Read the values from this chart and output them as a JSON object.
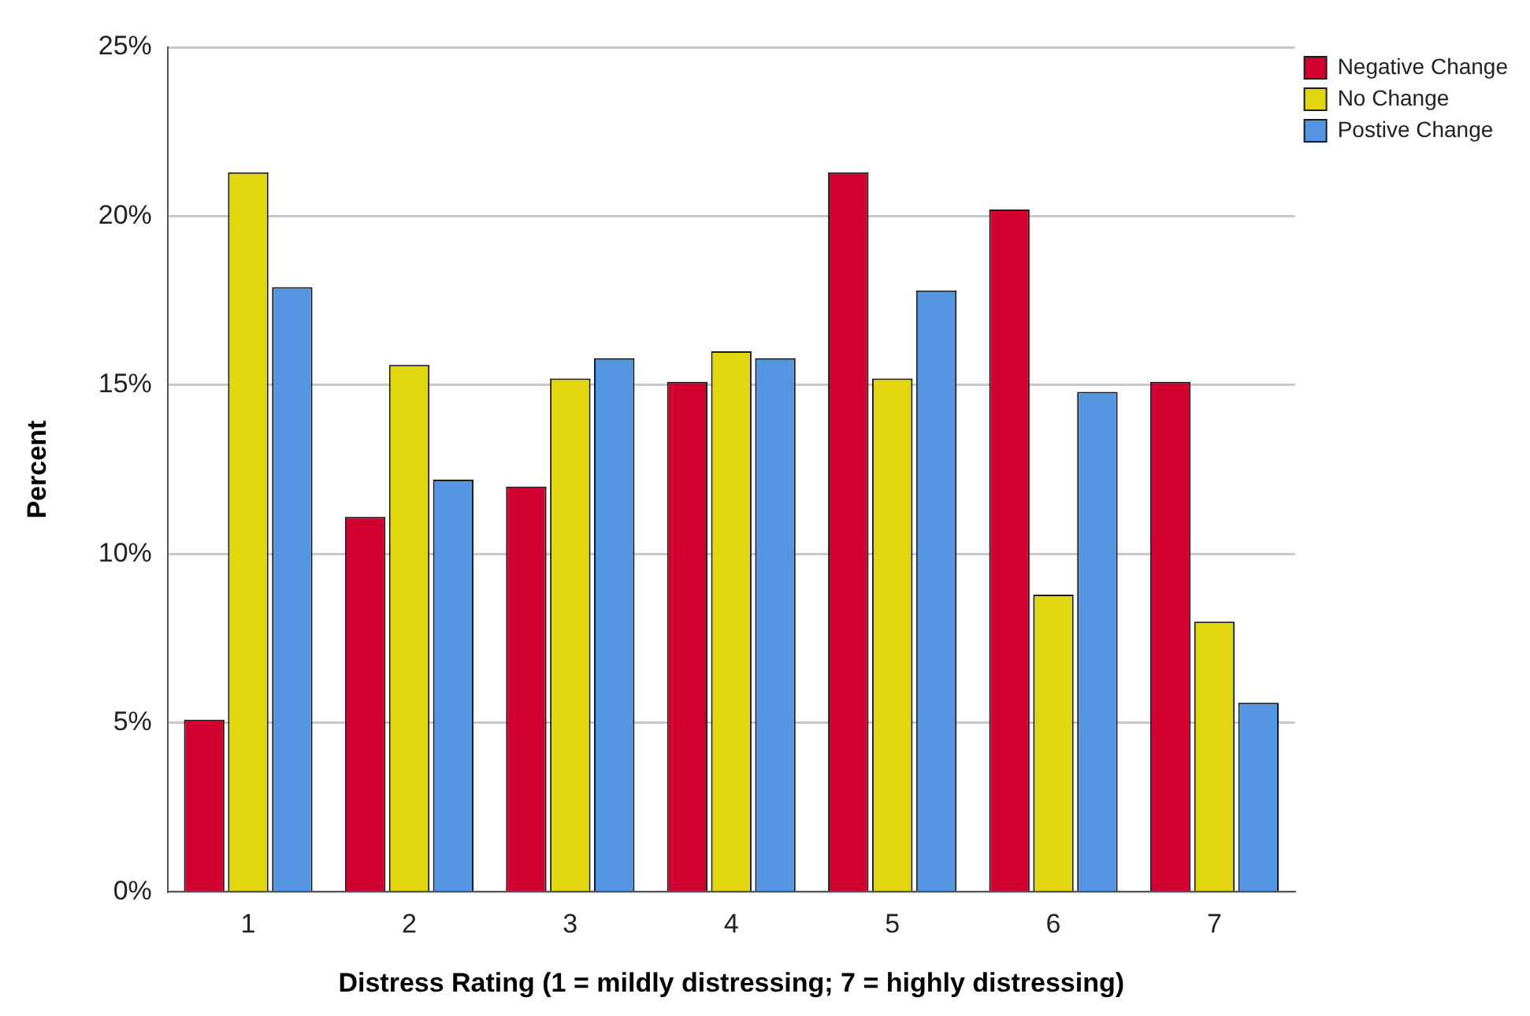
{
  "chart_data": {
    "type": "bar",
    "xlabel": "Distress Rating (1 = mildly distressing; 7 = highly distressing)",
    "ylabel": "Percent",
    "categories": [
      "1",
      "2",
      "3",
      "4",
      "5",
      "6",
      "7"
    ],
    "series": [
      {
        "name": "Negative Change",
        "color": "#d20030",
        "values": [
          5.1,
          11.1,
          12.0,
          15.1,
          21.3,
          20.2,
          15.1
        ]
      },
      {
        "name": "No Change",
        "color": "#e2d610",
        "values": [
          21.3,
          15.6,
          15.2,
          16.0,
          15.2,
          8.8,
          8.0
        ]
      },
      {
        "name": "Postive Change",
        "color": "#5596e2",
        "values": [
          17.9,
          12.2,
          15.8,
          15.8,
          17.8,
          14.8,
          5.6
        ]
      }
    ],
    "ylim": [
      0,
      25
    ],
    "yticks": [
      {
        "value": 0,
        "label": "0%"
      },
      {
        "value": 5,
        "label": "5%"
      },
      {
        "value": 10,
        "label": "10%"
      },
      {
        "value": 15,
        "label": "15%"
      },
      {
        "value": 20,
        "label": "20%"
      },
      {
        "value": 25,
        "label": "25%"
      }
    ],
    "grid": "y",
    "legend": "top right"
  }
}
